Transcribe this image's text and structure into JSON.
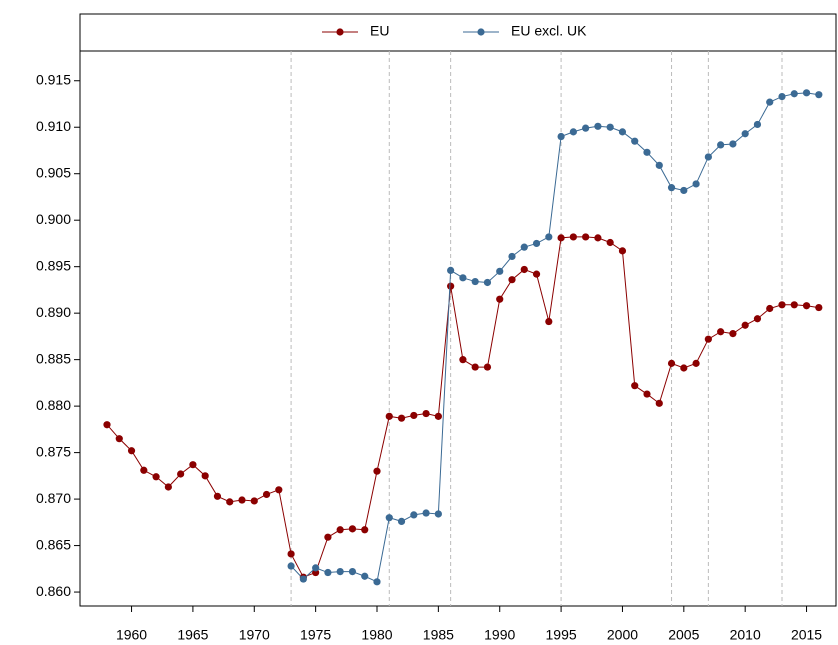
{
  "chart_data": {
    "type": "line",
    "x": [
      1958,
      1959,
      1960,
      1961,
      1962,
      1963,
      1964,
      1965,
      1966,
      1967,
      1968,
      1969,
      1970,
      1971,
      1972,
      1973,
      1974,
      1975,
      1976,
      1977,
      1978,
      1979,
      1980,
      1981,
      1982,
      1983,
      1984,
      1985,
      1986,
      1987,
      1988,
      1989,
      1990,
      1991,
      1992,
      1993,
      1994,
      1995,
      1996,
      1997,
      1998,
      1999,
      2000,
      2001,
      2002,
      2003,
      2004,
      2005,
      2006,
      2007,
      2008,
      2009,
      2010,
      2011,
      2012,
      2013,
      2014,
      2015,
      2016
    ],
    "series": [
      {
        "name": "EU",
        "color": "#8b0000",
        "values": [
          0.878,
          0.8765,
          0.8752,
          0.8731,
          0.8724,
          0.8713,
          0.8727,
          0.8737,
          0.8725,
          0.8703,
          0.8697,
          0.8699,
          0.8698,
          0.8705,
          0.871,
          0.8641,
          0.8616,
          0.8621,
          0.8659,
          0.8667,
          0.8668,
          0.8667,
          0.873,
          0.8789,
          0.8787,
          0.879,
          0.8792,
          0.8789,
          0.8929,
          0.885,
          0.8842,
          0.8842,
          0.8915,
          0.8936,
          0.8947,
          0.8942,
          0.8891,
          0.8981,
          0.8982,
          0.8982,
          0.8981,
          0.8976,
          0.8967,
          0.8822,
          0.8813,
          0.8803,
          0.8846,
          0.8841,
          0.8846,
          0.8872,
          0.888,
          0.8878,
          0.8887,
          0.8894,
          0.8905,
          0.8909,
          0.8909,
          0.8908,
          0.8906
        ]
      },
      {
        "name": "EU excl. UK",
        "color": "#3b6a94",
        "values": [
          null,
          null,
          null,
          null,
          null,
          null,
          null,
          null,
          null,
          null,
          null,
          null,
          null,
          null,
          null,
          0.8628,
          0.8614,
          0.8626,
          0.8621,
          0.8622,
          0.8622,
          0.8617,
          0.8611,
          0.868,
          0.8676,
          0.8683,
          0.8685,
          0.8684,
          0.8946,
          0.8938,
          0.8934,
          0.8933,
          0.8945,
          0.8961,
          0.8971,
          0.8975,
          0.8982,
          0.909,
          0.9095,
          0.9099,
          0.9101,
          0.91,
          0.9095,
          0.9085,
          0.9073,
          0.9059,
          0.9035,
          0.9032,
          0.9039,
          0.9068,
          0.9081,
          0.9082,
          0.9093,
          0.9103,
          0.9127,
          0.9133,
          0.9136,
          0.9137,
          0.9135
        ]
      }
    ],
    "xlim": [
      1955.8,
      2017.4
    ],
    "xticks": [
      1960,
      1965,
      1970,
      1975,
      1980,
      1985,
      1990,
      1995,
      2000,
      2005,
      2010,
      2015
    ],
    "ylim": [
      0.8585,
      0.9182
    ],
    "yticks": [
      {
        "value": 0.86,
        "label": "0.860"
      },
      0.865,
      {
        "value": 0.87,
        "label": "0.870"
      },
      0.875,
      {
        "value": 0.88,
        "label": "0.880"
      },
      0.885,
      {
        "value": 0.89,
        "label": "0.890"
      },
      0.895,
      {
        "value": 0.9,
        "label": "0.900"
      },
      0.905,
      {
        "value": 0.91,
        "label": "0.910"
      },
      0.915
    ],
    "vlines": [
      1973,
      1981,
      1986,
      1995,
      2004,
      2007,
      2013
    ],
    "legend": "top"
  }
}
